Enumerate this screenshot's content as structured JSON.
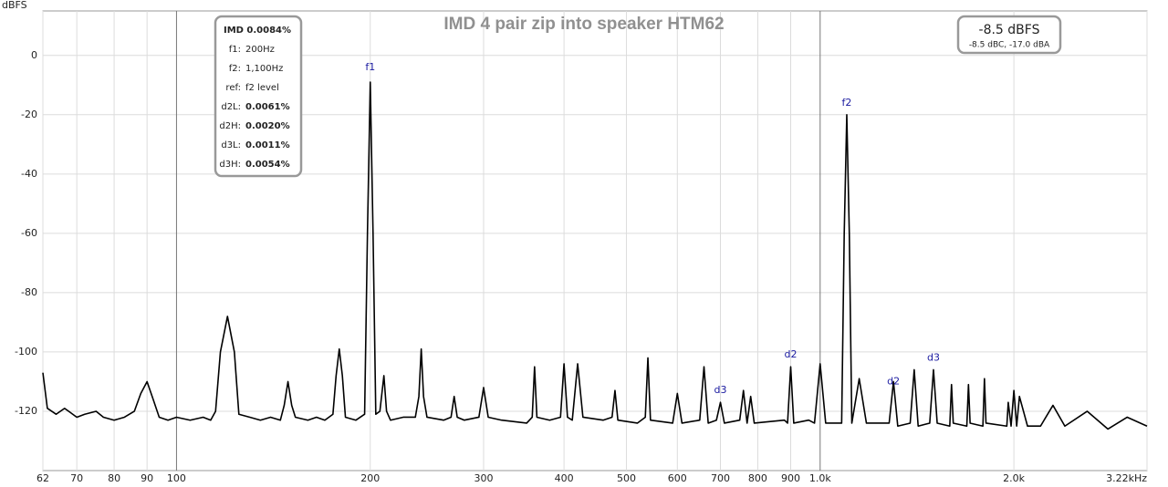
{
  "chart_data": {
    "type": "line",
    "title": "IMD 4 pair zip into speaker HTM62",
    "y_label": "dBFS",
    "log_x": true,
    "grid": true,
    "xlim": [
      62,
      3220
    ],
    "ylim": [
      -140,
      15
    ],
    "xticks": [
      62,
      70,
      80,
      90,
      100,
      200,
      300,
      400,
      500,
      600,
      700,
      800,
      900,
      {
        "value": 1000,
        "label": "1.0k"
      },
      {
        "value": 2000,
        "label": "2.0k"
      },
      {
        "value": 3220,
        "label": "3.22kHz"
      }
    ],
    "yticks": [
      0,
      -20,
      -40,
      -60,
      -80,
      -100,
      -120
    ],
    "series": [
      {
        "color": "#000000",
        "x": [
          62,
          63,
          65,
          67,
          68,
          70,
          72,
          75,
          77,
          80,
          83,
          86,
          88,
          90,
          92,
          94,
          97,
          100,
          105,
          110,
          113,
          115,
          117,
          120,
          123,
          125,
          130,
          135,
          140,
          145,
          147,
          149,
          151,
          153,
          160,
          165,
          170,
          175,
          177,
          179,
          181,
          183,
          190,
          196,
          198,
          200,
          202,
          204,
          207,
          210,
          212,
          215,
          225,
          235,
          238,
          240,
          242,
          245,
          260,
          267,
          270,
          273,
          280,
          295,
          300,
          305,
          320,
          350,
          357,
          360,
          363,
          380,
          395,
          400,
          405,
          412,
          420,
          428,
          460,
          475,
          480,
          485,
          520,
          535,
          540,
          545,
          590,
          600,
          610,
          650,
          660,
          670,
          690,
          700,
          710,
          750,
          760,
          770,
          780,
          790,
          880,
          890,
          900,
          910,
          960,
          980,
          1000,
          1020,
          1080,
          1090,
          1100,
          1110,
          1120,
          1150,
          1180,
          1280,
          1300,
          1320,
          1380,
          1400,
          1420,
          1480,
          1500,
          1520,
          1590,
          1600,
          1610,
          1690,
          1700,
          1710,
          1790,
          1800,
          1810,
          1950,
          1960,
          1980,
          2000,
          2020,
          2040,
          2100,
          2200,
          2300,
          2400,
          2600,
          2800,
          3000,
          3220
        ],
        "values": [
          -107,
          -119,
          -121,
          -119,
          -120,
          -122,
          -121,
          -120,
          -122,
          -123,
          -122,
          -120,
          -114,
          -110,
          -116,
          -122,
          -123,
          -122,
          -123,
          -122,
          -123,
          -120,
          -100,
          -88,
          -100,
          -121,
          -122,
          -123,
          -122,
          -123,
          -118,
          -110,
          -118,
          -122,
          -123,
          -122,
          -123,
          -121,
          -108,
          -99,
          -108,
          -122,
          -123,
          -121,
          -60,
          -9,
          -60,
          -121,
          -120,
          -108,
          -120,
          -123,
          -122,
          -122,
          -115,
          -99,
          -115,
          -122,
          -123,
          -122,
          -115,
          -122,
          -123,
          -122,
          -112,
          -122,
          -123,
          -124,
          -122,
          -105,
          -122,
          -123,
          -122,
          -104,
          -122,
          -123,
          -104,
          -122,
          -123,
          -122,
          -113,
          -123,
          -124,
          -122,
          -102,
          -123,
          -124,
          -114,
          -124,
          -123,
          -105,
          -124,
          -123,
          -117,
          -124,
          -123,
          -113,
          -124,
          -115,
          -124,
          -123,
          -124,
          -105,
          -124,
          -123,
          -124,
          -104,
          -124,
          -124,
          -60,
          -20,
          -60,
          -124,
          -109,
          -124,
          -124,
          -110,
          -125,
          -124,
          -106,
          -125,
          -124,
          -106,
          -124,
          -125,
          -111,
          -124,
          -125,
          -111,
          -124,
          -125,
          -109,
          -124,
          -125,
          -117,
          -125,
          -113,
          -125,
          -115,
          -125,
          -125,
          -118,
          -125,
          -120,
          -126,
          -122,
          -125
        ]
      }
    ],
    "annotations": [
      {
        "text": "f1",
        "x": 200,
        "y": -4
      },
      {
        "text": "f2",
        "x": 1100,
        "y": -16
      },
      {
        "text": "d3",
        "x": 700,
        "y": -113
      },
      {
        "text": "d2",
        "x": 900,
        "y": -101
      },
      {
        "text": "d2",
        "x": 1300,
        "y": -110
      },
      {
        "text": "d3",
        "x": 1500,
        "y": -102
      }
    ],
    "info_box": {
      "header": "IMD 0.0084%",
      "rows": [
        [
          "f1:",
          "200Hz"
        ],
        [
          "f2:",
          "1,100Hz"
        ],
        [
          "ref:",
          "f2 level"
        ],
        [
          "d2L:",
          "0.0061%"
        ],
        [
          "d2H:",
          "0.0020%"
        ],
        [
          "d3L:",
          "0.0011%"
        ],
        [
          "d3H:",
          "0.0054%"
        ]
      ]
    },
    "level_box": {
      "main": "-8.5 dBFS",
      "sub": "-8.5 dBC, -17.0 dBA"
    }
  }
}
